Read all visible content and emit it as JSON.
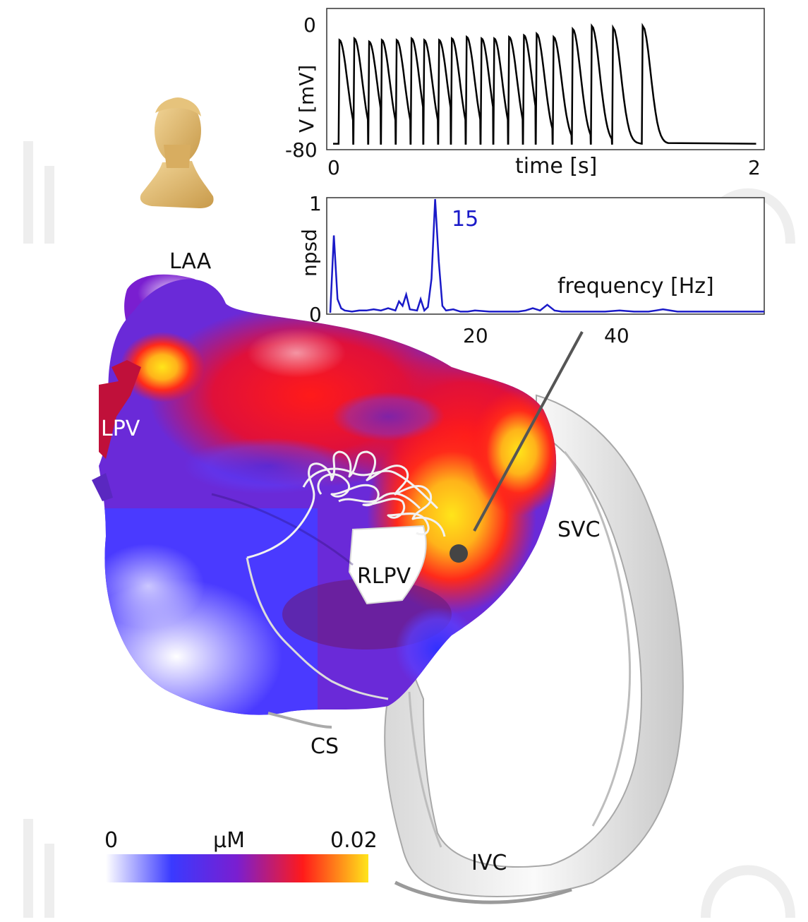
{
  "anatomy_labels": {
    "laa": "LAA",
    "lpv": "LPV",
    "rlpv": "RLPV",
    "svc": "SVC",
    "cs": "CS",
    "ivc": "IVC"
  },
  "colorbar": {
    "min_label": "0",
    "unit_label": "μM",
    "max_label": "0.02",
    "colors": [
      "#ffffff",
      "#3a3aff",
      "#7a1ed0",
      "#ff1a1a",
      "#ffe51a"
    ]
  },
  "chart_data": [
    {
      "type": "line",
      "xlabel": "time [s]",
      "ylabel": "V [mV]",
      "xlim": [
        0,
        2
      ],
      "ylim": [
        -80,
        0
      ],
      "x_ticks": [
        "0",
        "2"
      ],
      "y_ticks": [
        "0",
        "-80"
      ],
      "spike_times": [
        0.03,
        0.1,
        0.17,
        0.23,
        0.3,
        0.37,
        0.43,
        0.5,
        0.56,
        0.63,
        0.7,
        0.76,
        0.83,
        0.9,
        0.96,
        1.04,
        1.13,
        1.22,
        1.32,
        1.46
      ],
      "spike_peaks": [
        -12,
        -11,
        -13,
        -12,
        -12,
        -11,
        -12,
        -12,
        -11,
        -10,
        -11,
        -11,
        -10,
        -9,
        -8,
        -10,
        -5,
        -3,
        -4,
        -3
      ],
      "resting": -78,
      "line_color": "#000000"
    },
    {
      "type": "line",
      "xlabel": "frequency [Hz]",
      "ylabel": "npsd",
      "xlim": [
        0,
        60
      ],
      "ylim": [
        0,
        1
      ],
      "x_ticks": [
        "20",
        "40"
      ],
      "y_ticks": [
        "1",
        "0"
      ],
      "peak_label": "15",
      "x": [
        0,
        0.5,
        1,
        1.5,
        2,
        3,
        4,
        5,
        6,
        7,
        8,
        9,
        9.5,
        10,
        10.5,
        11,
        12,
        12.5,
        13,
        13.5,
        14,
        14.5,
        15,
        15.5,
        16,
        17,
        18,
        19,
        20,
        22,
        24,
        26,
        27,
        28,
        29,
        30,
        31,
        32,
        34,
        36,
        38,
        40,
        42,
        44,
        45,
        46,
        48,
        50,
        55,
        60
      ],
      "y": [
        0.0,
        0.68,
        0.12,
        0.04,
        0.02,
        0.01,
        0.02,
        0.02,
        0.03,
        0.02,
        0.04,
        0.02,
        0.1,
        0.06,
        0.16,
        0.03,
        0.02,
        0.12,
        0.02,
        0.05,
        0.3,
        1.0,
        0.45,
        0.06,
        0.02,
        0.03,
        0.01,
        0.01,
        0.02,
        0.01,
        0.01,
        0.01,
        0.02,
        0.04,
        0.02,
        0.07,
        0.02,
        0.01,
        0.01,
        0.01,
        0.01,
        0.02,
        0.01,
        0.01,
        0.02,
        0.03,
        0.01,
        0.01,
        0.01,
        0.01
      ],
      "line_color": "#1a1ac8",
      "peak_label_color": "#1a1ac8"
    }
  ]
}
